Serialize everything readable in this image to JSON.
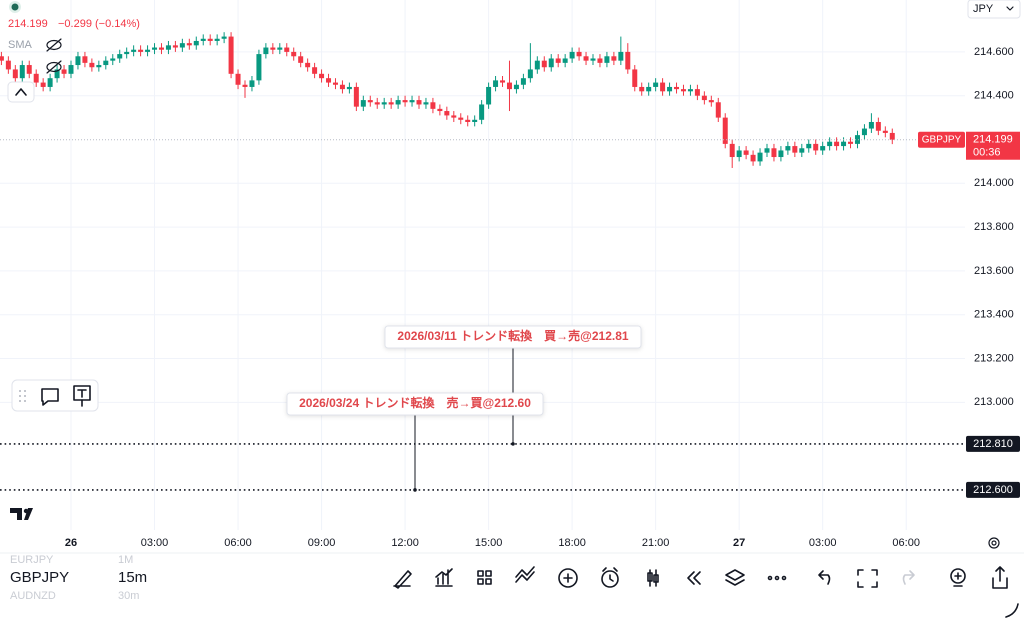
{
  "header": {
    "price": "214.199",
    "change": "−0.299 (−0.14%)",
    "indicator": "SMA",
    "currency": "JPY"
  },
  "chart_data": {
    "type": "candlestick",
    "categories": [
      null,
      null,
      null,
      null,
      null,
      null,
      null,
      null,
      null,
      null,
      "26",
      null,
      null,
      null,
      null,
      null,
      null,
      null,
      null,
      null,
      null,
      null,
      "03:00",
      null,
      null,
      null,
      null,
      null,
      null,
      null,
      null,
      null,
      null,
      null,
      "06:00",
      null,
      null,
      null,
      null,
      null,
      null,
      null,
      null,
      null,
      null,
      null,
      "09:00",
      null,
      null,
      null,
      null,
      null,
      null,
      null,
      null,
      null,
      null,
      null,
      "12:00",
      null,
      null,
      null,
      null,
      null,
      null,
      null,
      null,
      null,
      null,
      null,
      "15:00",
      null,
      null,
      null,
      null,
      null,
      null,
      null,
      null,
      null,
      null,
      null,
      "18:00",
      null,
      null,
      null,
      null,
      null,
      null,
      null,
      null,
      null,
      null,
      null,
      "21:00",
      null,
      null,
      null,
      null,
      null,
      null,
      null,
      null,
      null,
      null,
      null,
      "27",
      null,
      null,
      null,
      null,
      null,
      null,
      null,
      null,
      null,
      null,
      null,
      "03:00",
      null,
      null,
      null,
      null,
      null,
      null,
      null,
      null,
      null,
      null,
      null,
      "06:00"
    ],
    "open": [
      214.58,
      214.56,
      214.52,
      214.48,
      214.54,
      214.5,
      214.46,
      214.44,
      214.48,
      214.52,
      214.5,
      214.54,
      214.58,
      214.55,
      214.53,
      214.54,
      214.56,
      214.57,
      214.59,
      214.6,
      214.61,
      214.6,
      214.61,
      214.62,
      214.61,
      214.63,
      214.62,
      214.64,
      214.63,
      214.65,
      214.66,
      214.65,
      214.66,
      214.67,
      214.5,
      214.45,
      214.44,
      214.47,
      214.59,
      214.62,
      214.61,
      214.62,
      214.6,
      214.58,
      214.55,
      214.53,
      214.5,
      214.48,
      214.46,
      214.45,
      214.43,
      214.44,
      214.35,
      214.38,
      214.37,
      214.36,
      214.37,
      214.36,
      214.38,
      214.37,
      214.38,
      214.36,
      214.37,
      214.34,
      214.33,
      214.31,
      214.3,
      214.29,
      214.28,
      214.29,
      214.36,
      214.44,
      214.47,
      214.46,
      214.43,
      214.45,
      214.48,
      214.52,
      214.56,
      214.53,
      214.57,
      214.55,
      214.57,
      214.6,
      214.58,
      214.56,
      214.57,
      214.55,
      214.58,
      214.56,
      214.6,
      214.52,
      214.44,
      214.42,
      214.44,
      214.46,
      214.42,
      214.44,
      214.43,
      214.42,
      214.43,
      214.4,
      214.38,
      214.37,
      214.3,
      214.18,
      214.12,
      214.15,
      214.13,
      214.1,
      214.14,
      214.16,
      214.12,
      214.15,
      214.17,
      214.14,
      214.16,
      214.18,
      214.15,
      214.17,
      214.19,
      214.17,
      214.19,
      214.18,
      214.22,
      214.25,
      214.28,
      214.24,
      214.23,
      null,
      null
    ],
    "high": [
      214.6,
      214.58,
      214.54,
      214.56,
      214.56,
      214.52,
      214.48,
      214.5,
      214.54,
      214.54,
      214.56,
      214.6,
      214.6,
      214.57,
      214.56,
      214.58,
      214.59,
      214.61,
      214.62,
      214.63,
      214.63,
      214.63,
      214.64,
      214.64,
      214.65,
      214.65,
      214.66,
      214.66,
      214.67,
      214.68,
      214.68,
      214.68,
      214.69,
      214.69,
      214.52,
      214.47,
      214.49,
      214.61,
      214.64,
      214.64,
      214.64,
      214.64,
      214.62,
      214.6,
      214.57,
      214.55,
      214.52,
      214.5,
      214.48,
      214.47,
      214.46,
      214.46,
      214.4,
      214.4,
      214.39,
      214.39,
      214.39,
      214.4,
      214.4,
      214.4,
      214.4,
      214.39,
      214.39,
      214.36,
      214.35,
      214.33,
      214.32,
      214.31,
      214.31,
      214.38,
      214.46,
      214.49,
      214.49,
      214.56,
      214.47,
      214.5,
      214.64,
      214.58,
      214.58,
      214.59,
      214.59,
      214.59,
      214.62,
      214.62,
      214.6,
      214.59,
      214.59,
      214.6,
      214.6,
      214.67,
      214.64,
      214.54,
      214.46,
      214.46,
      214.48,
      214.48,
      214.46,
      214.46,
      214.45,
      214.45,
      214.45,
      214.42,
      214.4,
      214.39,
      214.32,
      214.2,
      214.17,
      214.17,
      214.15,
      214.16,
      214.18,
      214.18,
      214.17,
      214.19,
      214.19,
      214.18,
      214.2,
      214.2,
      214.19,
      214.21,
      214.21,
      214.21,
      214.21,
      214.24,
      214.27,
      214.32,
      214.3,
      214.26,
      214.25,
      null,
      null
    ],
    "low": [
      214.54,
      214.5,
      214.46,
      214.46,
      214.48,
      214.44,
      214.42,
      214.42,
      214.46,
      214.48,
      214.48,
      214.52,
      214.53,
      214.51,
      214.51,
      214.52,
      214.54,
      214.55,
      214.57,
      214.58,
      214.58,
      214.58,
      214.59,
      214.59,
      214.59,
      214.6,
      214.6,
      214.61,
      214.61,
      214.63,
      214.63,
      214.63,
      214.64,
      214.48,
      214.43,
      214.39,
      214.42,
      214.45,
      214.57,
      214.59,
      214.59,
      214.58,
      214.56,
      214.53,
      214.51,
      214.48,
      214.46,
      214.44,
      214.43,
      214.41,
      214.41,
      214.33,
      214.33,
      214.35,
      214.34,
      214.34,
      214.34,
      214.34,
      214.35,
      214.35,
      214.34,
      214.34,
      214.32,
      214.31,
      214.29,
      214.28,
      214.27,
      214.26,
      214.26,
      214.27,
      214.34,
      214.42,
      214.44,
      214.33,
      214.41,
      214.43,
      214.46,
      214.5,
      214.51,
      214.51,
      214.53,
      214.53,
      214.55,
      214.56,
      214.54,
      214.54,
      214.53,
      214.53,
      214.54,
      214.54,
      214.5,
      214.42,
      214.4,
      214.4,
      214.42,
      214.4,
      214.4,
      214.41,
      214.4,
      214.4,
      214.38,
      214.36,
      214.35,
      214.28,
      214.16,
      214.07,
      214.1,
      214.11,
      214.08,
      214.08,
      214.12,
      214.1,
      214.1,
      214.13,
      214.12,
      214.12,
      214.14,
      214.13,
      214.13,
      214.15,
      214.15,
      214.15,
      214.16,
      214.16,
      214.2,
      214.23,
      214.22,
      214.21,
      214.179,
      null,
      null
    ],
    "close": [
      214.56,
      214.52,
      214.48,
      214.54,
      214.5,
      214.46,
      214.44,
      214.48,
      214.52,
      214.5,
      214.54,
      214.58,
      214.55,
      214.53,
      214.54,
      214.56,
      214.57,
      214.59,
      214.6,
      214.61,
      214.6,
      214.61,
      214.62,
      214.61,
      214.63,
      214.62,
      214.64,
      214.63,
      214.65,
      214.66,
      214.65,
      214.66,
      214.67,
      214.5,
      214.45,
      214.44,
      214.47,
      214.59,
      214.62,
      214.61,
      214.62,
      214.6,
      214.58,
      214.55,
      214.53,
      214.5,
      214.48,
      214.46,
      214.45,
      214.43,
      214.44,
      214.35,
      214.38,
      214.37,
      214.36,
      214.37,
      214.36,
      214.38,
      214.37,
      214.38,
      214.36,
      214.37,
      214.34,
      214.33,
      214.31,
      214.3,
      214.29,
      214.28,
      214.29,
      214.36,
      214.44,
      214.47,
      214.46,
      214.43,
      214.45,
      214.48,
      214.52,
      214.56,
      214.53,
      214.57,
      214.55,
      214.57,
      214.6,
      214.58,
      214.56,
      214.57,
      214.55,
      214.58,
      214.56,
      214.6,
      214.52,
      214.44,
      214.42,
      214.44,
      214.46,
      214.42,
      214.44,
      214.43,
      214.42,
      214.43,
      214.4,
      214.38,
      214.37,
      214.3,
      214.18,
      214.12,
      214.15,
      214.13,
      214.1,
      214.14,
      214.16,
      214.12,
      214.15,
      214.17,
      214.14,
      214.16,
      214.18,
      214.15,
      214.17,
      214.19,
      214.17,
      214.19,
      214.18,
      214.22,
      214.25,
      214.28,
      214.24,
      214.23,
      214.199,
      null,
      null
    ],
    "up_color": "#089981",
    "down_color": "#f23645",
    "ylim": [
      212.417,
      214.837
    ],
    "yticks": [
      {
        "value": 213,
        "label": "213.000"
      },
      {
        "value": 213.2,
        "label": "213.200"
      },
      {
        "value": 213.4,
        "label": "213.400"
      },
      {
        "value": 213.6,
        "label": "213.600"
      },
      {
        "value": 213.8,
        "label": "213.800"
      },
      {
        "value": 214,
        "label": "214.000"
      },
      {
        "value": 214.4,
        "label": "214.400"
      },
      {
        "value": 214.6,
        "label": "214.600"
      }
    ],
    "grid": true,
    "last_price": {
      "symbol": "GBPJPY",
      "value": 214.199,
      "label": "214.199",
      "countdown": "00:36"
    },
    "hlines": [
      {
        "value": 212.81,
        "label": "212.810"
      },
      {
        "value": 212.6,
        "label": "212.600"
      }
    ],
    "annotations": [
      {
        "text": "2026/03/11 トレンド転換　買→売@212.81"
      },
      {
        "text": "2026/03/24 トレンド転換　売→買@212.60"
      }
    ]
  },
  "toolbar": {
    "symbol": "GBPJPY",
    "interval": "15m",
    "prev_symbol": "EURJPY",
    "prev_interval": "1M",
    "next_symbol": "AUDNZD",
    "next_interval": "30m"
  }
}
